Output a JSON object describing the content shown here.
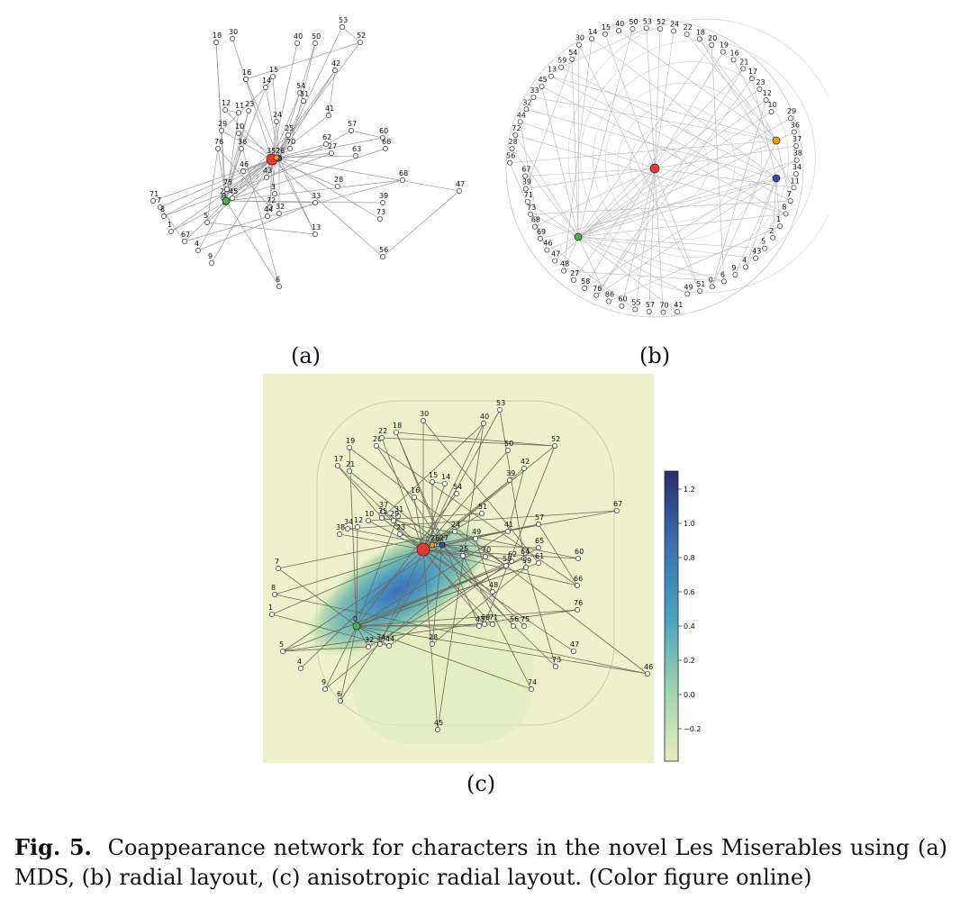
{
  "panels": {
    "a": {
      "label": "(a)"
    },
    "b": {
      "label": "(b)"
    },
    "c": {
      "label": "(c)"
    }
  },
  "colorbar": {
    "ticks": [
      "1.2",
      "1.0",
      "0.8",
      "0.6",
      "0.4",
      "0.2",
      "0.0",
      "−0.2"
    ]
  },
  "caption": {
    "fig_label": "Fig. 5.",
    "text": "Coappearance network for characters in the novel Les Miserables using (a) MDS, (b) radial layout, (c) anisotropic radial layout. (Color figure online)"
  },
  "node_labels": {
    "mds": [
      "30",
      "40",
      "50",
      "53",
      "52",
      "18",
      "15",
      "14",
      "42",
      "16",
      "54",
      "51",
      "12",
      "11",
      "23",
      "24",
      "41",
      "57",
      "60",
      "66",
      "29",
      "10",
      "25",
      "70",
      "62",
      "63",
      "76",
      "36",
      "35",
      "26",
      "27",
      "68",
      "47",
      "46",
      "43",
      "28",
      "75",
      "2",
      "0",
      "3",
      "72",
      "33",
      "39",
      "73",
      "71",
      "7",
      "8",
      "1",
      "5",
      "44",
      "32",
      "13",
      "56",
      "67",
      "4",
      "9",
      "6",
      "45"
    ],
    "radial": [
      "30",
      "14",
      "15",
      "40",
      "50",
      "53",
      "52",
      "24",
      "22",
      "18",
      "20",
      "19",
      "16",
      "21",
      "17",
      "23",
      "12",
      "10",
      "29",
      "36",
      "37",
      "38",
      "34",
      "11",
      "7",
      "8",
      "1",
      "2",
      "5",
      "43",
      "4",
      "9",
      "6",
      "0",
      "51",
      "49",
      "41",
      "70",
      "57",
      "55",
      "60",
      "86",
      "76",
      "58",
      "27",
      "48",
      "47",
      "46",
      "69",
      "68",
      "73",
      "71",
      "39",
      "67",
      "56",
      "28",
      "72",
      "44",
      "32",
      "33",
      "45",
      "13",
      "59",
      "54"
    ],
    "aniso": [
      "53",
      "30",
      "18",
      "20",
      "22",
      "19",
      "17",
      "21",
      "40",
      "50",
      "52",
      "42",
      "39",
      "15",
      "14",
      "54",
      "16",
      "37",
      "31",
      "35",
      "29",
      "10",
      "12",
      "34",
      "38",
      "23",
      "26",
      "27",
      "24",
      "51",
      "49",
      "25",
      "70",
      "57",
      "65",
      "60",
      "41",
      "62",
      "64",
      "61",
      "59",
      "58",
      "66",
      "48",
      "76",
      "67",
      "7",
      "8",
      "1",
      "0",
      "5",
      "4",
      "9",
      "6",
      "32",
      "34",
      "44",
      "43",
      "28",
      "69",
      "71",
      "56",
      "75",
      "47",
      "46",
      "73",
      "74",
      "45"
    ]
  }
}
